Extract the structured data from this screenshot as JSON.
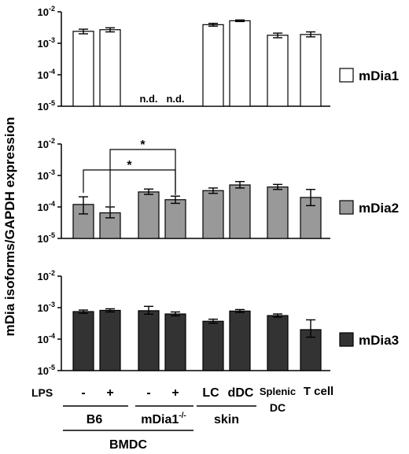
{
  "chart_data": {
    "type": "bar",
    "ylabel": "mDia isoforms/GAPDH expression",
    "yscale": "log",
    "ylim": [
      1e-05,
      0.01
    ],
    "y_tick_labels": [
      {
        "base": "10",
        "exp": "-2"
      },
      {
        "base": "10",
        "exp": "-3"
      },
      {
        "base": "10",
        "exp": "-4"
      },
      {
        "base": "10",
        "exp": "-5"
      }
    ],
    "x_annotations": {
      "lps_label": "LPS",
      "lps_marks": [
        "-",
        "+",
        "-",
        "+"
      ],
      "group_b6": "B6",
      "group_mdia1_base": "mDia1",
      "group_mdia1_sup": "-/-",
      "bmdc": "BMDC",
      "lc": "LC",
      "ddc": "dDC",
      "skin": "skin",
      "splenic_l1": "Splenic",
      "splenic_l2": "DC",
      "tcell": "T cell"
    },
    "panels": [
      {
        "name": "mDia1",
        "fill": "#ffffff",
        "not_detected_label": "n.d.",
        "bars": [
          {
            "x": 1,
            "value": 0.0024,
            "err": [
              0.002,
              0.0028
            ]
          },
          {
            "x": 2,
            "value": 0.0027,
            "err": [
              0.0023,
              0.0031
            ]
          },
          {
            "x": 3,
            "value": null
          },
          {
            "x": 4,
            "value": null
          },
          {
            "x": 5,
            "value": 0.0039,
            "err": [
              0.0035,
              0.0043
            ]
          },
          {
            "x": 6,
            "value": 0.0052,
            "err": [
              0.0049,
              0.0055
            ]
          },
          {
            "x": 7,
            "value": 0.0018,
            "err": [
              0.0015,
              0.0021
            ]
          },
          {
            "x": 8,
            "value": 0.0019,
            "err": [
              0.0016,
              0.0023
            ]
          }
        ]
      },
      {
        "name": "mDia2",
        "fill": "#999999",
        "significance_marker": "*",
        "bars": [
          {
            "x": 1,
            "value": 0.00012,
            "err": [
              6e-05,
              0.00021
            ]
          },
          {
            "x": 2,
            "value": 6.5e-05,
            "err": [
              4.5e-05,
              0.0001
            ]
          },
          {
            "x": 3,
            "value": 0.0003,
            "err": [
              0.00025,
              0.00037
            ]
          },
          {
            "x": 4,
            "value": 0.00017,
            "err": [
              0.00013,
              0.00022
            ]
          },
          {
            "x": 5,
            "value": 0.00033,
            "err": [
              0.00027,
              0.0004
            ]
          },
          {
            "x": 6,
            "value": 0.0005,
            "err": [
              0.0004,
              0.00064
            ]
          },
          {
            "x": 7,
            "value": 0.00043,
            "err": [
              0.00036,
              0.00052
            ]
          },
          {
            "x": 8,
            "value": 0.0002,
            "err": [
              0.00011,
              0.00036
            ]
          }
        ]
      },
      {
        "name": "mDia3",
        "fill": "#333333",
        "bars": [
          {
            "x": 1,
            "value": 0.00075,
            "err": [
              0.00066,
              0.00084
            ]
          },
          {
            "x": 2,
            "value": 0.00082,
            "err": [
              0.00073,
              0.00092
            ]
          },
          {
            "x": 3,
            "value": 0.0008,
            "err": [
              0.00062,
              0.0011
            ]
          },
          {
            "x": 4,
            "value": 0.00063,
            "err": [
              0.00055,
              0.00073
            ]
          },
          {
            "x": 5,
            "value": 0.00037,
            "err": [
              0.00032,
              0.00043
            ]
          },
          {
            "x": 6,
            "value": 0.00078,
            "err": [
              0.0007,
              0.00087
            ]
          },
          {
            "x": 7,
            "value": 0.00056,
            "err": [
              0.0005,
              0.00063
            ]
          },
          {
            "x": 8,
            "value": 0.0002,
            "err": [
              0.000115,
              0.00041
            ]
          }
        ]
      }
    ]
  }
}
